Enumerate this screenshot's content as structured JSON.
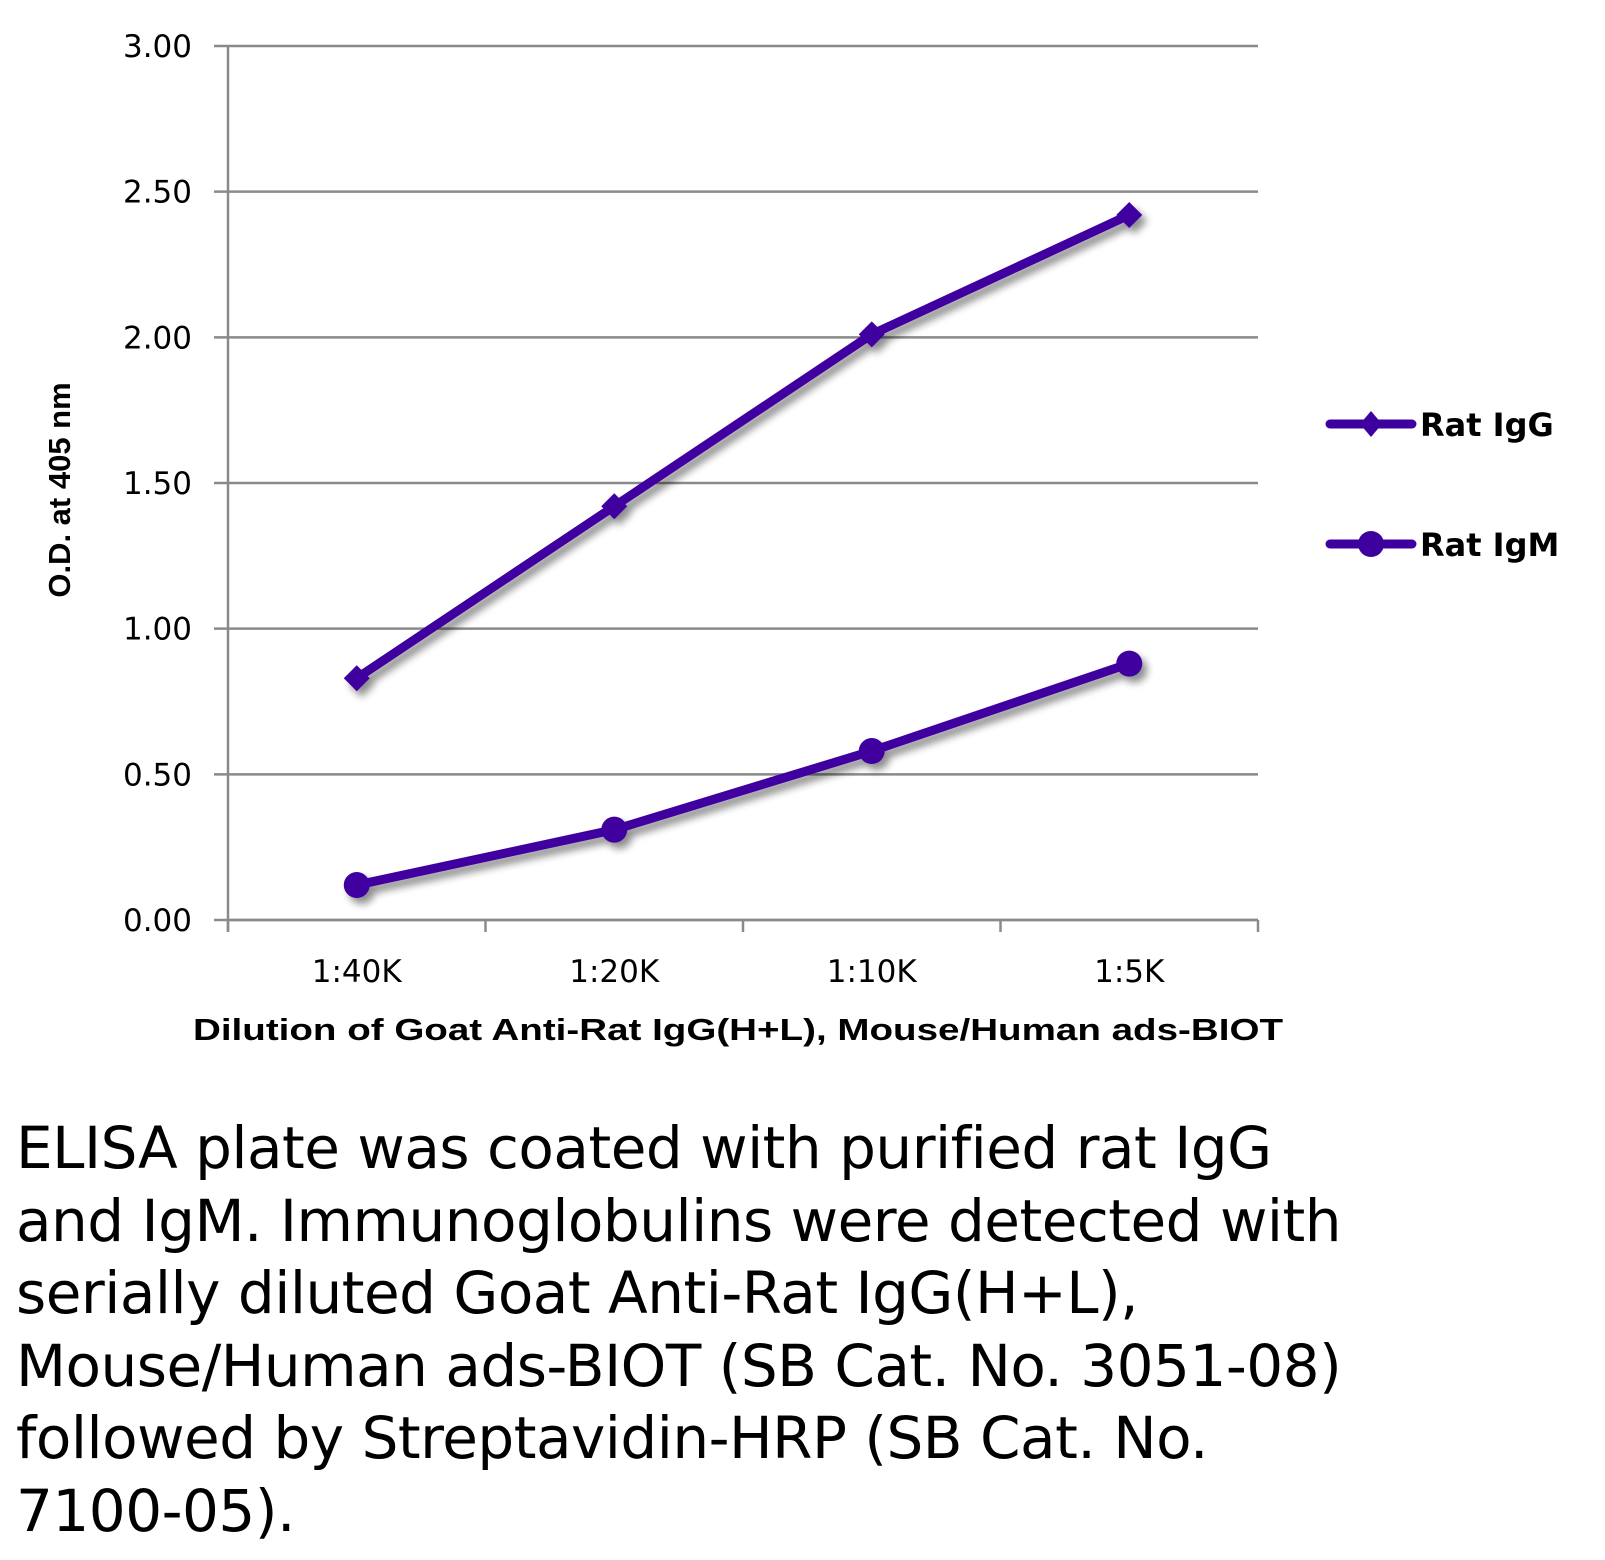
{
  "chart_data": {
    "type": "line",
    "title": "",
    "xlabel": "Dilution of Goat Anti-Rat IgG(H+L), Mouse/Human ads-BIOT",
    "ylabel": "O.D. at 405 nm",
    "categories": [
      "1:40K",
      "1:20K",
      "1:10K",
      "1:5K"
    ],
    "ylim": [
      0,
      3
    ],
    "yticks": [
      "0.00",
      "0.50",
      "1.00",
      "1.50",
      "2.00",
      "2.50",
      "3.00"
    ],
    "grid": true,
    "legend_position": "right",
    "series": [
      {
        "name": "Rat IgG",
        "marker": "diamond",
        "color": "#3f00a0",
        "values": [
          0.83,
          1.42,
          2.01,
          2.42
        ]
      },
      {
        "name": "Rat IgM",
        "marker": "circle",
        "color": "#3f00a0",
        "values": [
          0.12,
          0.31,
          0.58,
          0.88
        ]
      }
    ]
  },
  "caption": {
    "lines": [
      "ELISA plate was coated with purified rat IgG",
      "and IgM.  Immunoglobulins were detected with",
      "serially diluted Goat Anti-Rat IgG(H+L),",
      "Mouse/Human ads-BIOT (SB Cat. No. 3051-08)",
      "followed by Streptavidin-HRP (SB Cat. No.",
      "7100-05)."
    ]
  },
  "colors": {
    "grid": "#8a8a8a",
    "series": "#3f00a0"
  }
}
